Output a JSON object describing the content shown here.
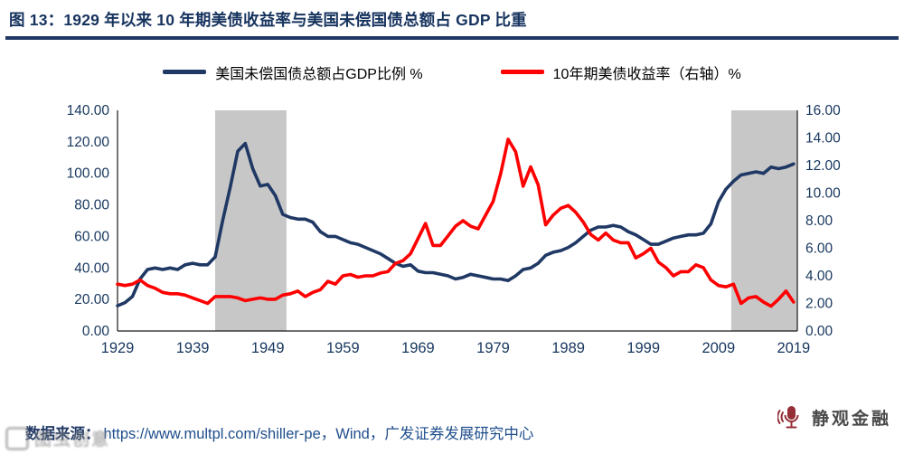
{
  "header": {
    "title": "图 13：1929 年以来 10 年期美债收益率与美国未偿国债总额占 GDP 比重"
  },
  "legend": {
    "items": [
      {
        "label": "美国未偿国债总额占GDP比例 %",
        "color": "#1f3864"
      },
      {
        "label": "10年期美债收益率（右轴）%",
        "color": "#fe0000"
      }
    ]
  },
  "footer": {
    "source_label": "数据来源：",
    "source_text": "https://www.multpl.com/shiller-pe，Wind，广发证券发展研究中心"
  },
  "watermarks": {
    "right": "静观金融",
    "left": "图虫创意"
  },
  "chart_data": {
    "type": "line",
    "title": "1929 年以来 10 年期美债收益率与美国未偿国债总额占 GDP 比重",
    "grid": false,
    "legend_position": "top",
    "x_start": 1929,
    "x_end": 2019,
    "x_axis_extent": [
      1929,
      2019.5
    ],
    "x_ticks": [
      "1929",
      "1939",
      "1949",
      "1959",
      "1969",
      "1979",
      "1989",
      "1999",
      "2009",
      "2019"
    ],
    "left_axis": {
      "title": "美国未偿国债总额占GDP比例 %",
      "range": [
        0,
        140
      ],
      "tick_step": 20,
      "ticks": [
        "140.00",
        "120.00",
        "100.00",
        "80.00",
        "60.00",
        "40.00",
        "20.00",
        "0.00"
      ]
    },
    "right_axis": {
      "title": "10年期美债收益率（右轴）%",
      "range": [
        0,
        16
      ],
      "tick_step": 2,
      "ticks": [
        "16.00",
        "14.00",
        "12.00",
        "10.00",
        "8.00",
        "6.00",
        "4.00",
        "2.00",
        "0.00"
      ]
    },
    "shaded_regions": [
      {
        "from": 1942,
        "to": 1951.5,
        "color": "#c7c7c7"
      },
      {
        "from": 2010.7,
        "to": 2019.5,
        "color": "#c7c7c7"
      }
    ],
    "series": [
      {
        "name": "美国未偿国债总额占GDP比例 %",
        "axis": "left",
        "color": "#1f3864",
        "values": [
          16,
          18,
          22,
          33,
          39,
          40,
          39,
          40,
          39,
          42,
          43,
          42,
          42,
          47,
          70,
          91,
          114,
          119,
          103,
          92,
          93,
          86,
          74,
          72,
          71,
          71,
          69,
          63,
          60,
          60,
          58,
          56,
          55,
          53,
          51,
          49,
          46,
          43,
          41,
          42,
          38,
          37,
          37,
          36,
          35,
          33,
          34,
          36,
          35,
          34,
          33,
          33,
          32,
          35,
          39,
          40,
          43,
          48,
          50,
          51,
          53,
          56,
          60,
          64,
          66,
          66,
          67,
          66,
          63,
          61,
          58,
          55,
          55,
          57,
          59,
          60,
          61,
          61,
          62,
          68,
          82,
          90,
          95,
          99,
          100,
          101,
          100,
          104,
          103,
          104,
          106
        ]
      },
      {
        "name": "10年期美债收益率（右轴）%",
        "axis": "right",
        "color": "#fe0000",
        "values": [
          3.4,
          3.3,
          3.4,
          3.7,
          3.3,
          3.1,
          2.8,
          2.7,
          2.7,
          2.6,
          2.4,
          2.2,
          2.0,
          2.5,
          2.5,
          2.5,
          2.4,
          2.2,
          2.3,
          2.4,
          2.3,
          2.3,
          2.6,
          2.7,
          2.9,
          2.5,
          2.8,
          3.0,
          3.6,
          3.4,
          4.0,
          4.1,
          3.9,
          4.0,
          4.0,
          4.2,
          4.3,
          4.9,
          5.1,
          5.6,
          6.7,
          7.8,
          6.2,
          6.2,
          6.9,
          7.6,
          8.0,
          7.6,
          7.4,
          8.4,
          9.4,
          11.4,
          13.9,
          13.0,
          10.5,
          11.9,
          10.6,
          7.7,
          8.4,
          8.9,
          9.1,
          8.6,
          7.9,
          7.0,
          6.6,
          7.1,
          6.6,
          6.4,
          6.4,
          5.3,
          5.6,
          6.0,
          5.0,
          4.6,
          4.0,
          4.3,
          4.3,
          4.8,
          4.6,
          3.7,
          3.3,
          3.2,
          3.4,
          2.0,
          2.4,
          2.5,
          2.1,
          1.8,
          2.3,
          2.9,
          2.1
        ]
      }
    ]
  }
}
